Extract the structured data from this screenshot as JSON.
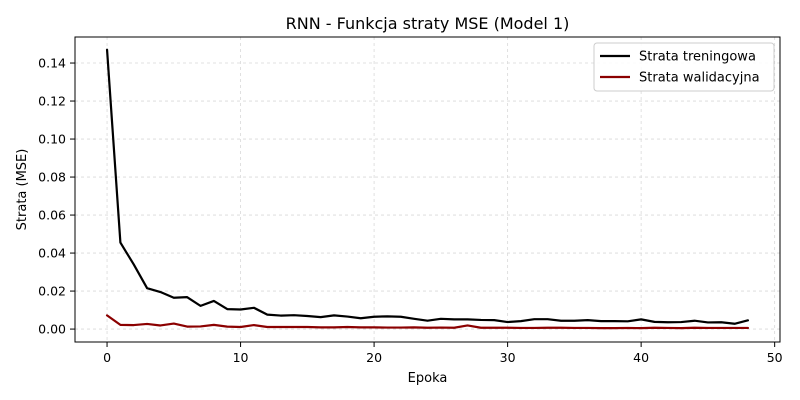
{
  "chart_data": {
    "type": "line",
    "title": "RNN - Funkcja straty MSE (Model 1)",
    "xlabel": "Epoka",
    "ylabel": "Strata (MSE)",
    "xlim": [
      -2.4,
      50.4
    ],
    "ylim": [
      -0.0068,
      0.1537
    ],
    "xticks": [
      0,
      10,
      20,
      30,
      40,
      50
    ],
    "yticks": [
      0.0,
      0.02,
      0.04,
      0.06,
      0.08,
      0.1,
      0.12,
      0.14
    ],
    "ytick_labels": [
      "0.00",
      "0.02",
      "0.04",
      "0.06",
      "0.08",
      "0.10",
      "0.12",
      "0.14"
    ],
    "grid": true,
    "legend_position": "top-right",
    "x": [
      0,
      1,
      2,
      3,
      4,
      5,
      6,
      7,
      8,
      9,
      10,
      11,
      12,
      13,
      14,
      15,
      16,
      17,
      18,
      19,
      20,
      21,
      22,
      23,
      24,
      25,
      26,
      27,
      28,
      29,
      30,
      31,
      32,
      33,
      34,
      35,
      36,
      37,
      38,
      39,
      40,
      41,
      42,
      43,
      44,
      45,
      46,
      47,
      48
    ],
    "series": [
      {
        "name": "Strata treningowa",
        "color": "#000000",
        "values": [
          0.147,
          0.0455,
          0.034,
          0.0215,
          0.0195,
          0.0165,
          0.0168,
          0.0122,
          0.0148,
          0.0105,
          0.0103,
          0.0112,
          0.0076,
          0.0071,
          0.0073,
          0.0069,
          0.0063,
          0.0072,
          0.0066,
          0.0057,
          0.0065,
          0.0067,
          0.0065,
          0.0054,
          0.0044,
          0.0054,
          0.0051,
          0.0051,
          0.0048,
          0.0047,
          0.0037,
          0.0042,
          0.0052,
          0.0052,
          0.0044,
          0.0044,
          0.0047,
          0.0042,
          0.0042,
          0.0041,
          0.0051,
          0.0038,
          0.0036,
          0.0037,
          0.0044,
          0.0035,
          0.0036,
          0.0028,
          0.0046
        ]
      },
      {
        "name": "Strata walidacyjna",
        "color": "#8b0000",
        "values": [
          0.0072,
          0.0022,
          0.0021,
          0.0027,
          0.0019,
          0.0029,
          0.0013,
          0.0014,
          0.0022,
          0.0013,
          0.0011,
          0.0021,
          0.0011,
          0.0011,
          0.0011,
          0.0011,
          0.0009,
          0.0009,
          0.0011,
          0.0009,
          0.0009,
          0.0008,
          0.0008,
          0.0009,
          0.0007,
          0.0008,
          0.0007,
          0.0019,
          0.0007,
          0.0007,
          0.0007,
          0.0006,
          0.0006,
          0.0007,
          0.0007,
          0.0006,
          0.0006,
          0.0005,
          0.0005,
          0.0006,
          0.0005,
          0.0007,
          0.0006,
          0.0005,
          0.0007,
          0.0006,
          0.0006,
          0.0006,
          0.0006
        ]
      }
    ]
  }
}
